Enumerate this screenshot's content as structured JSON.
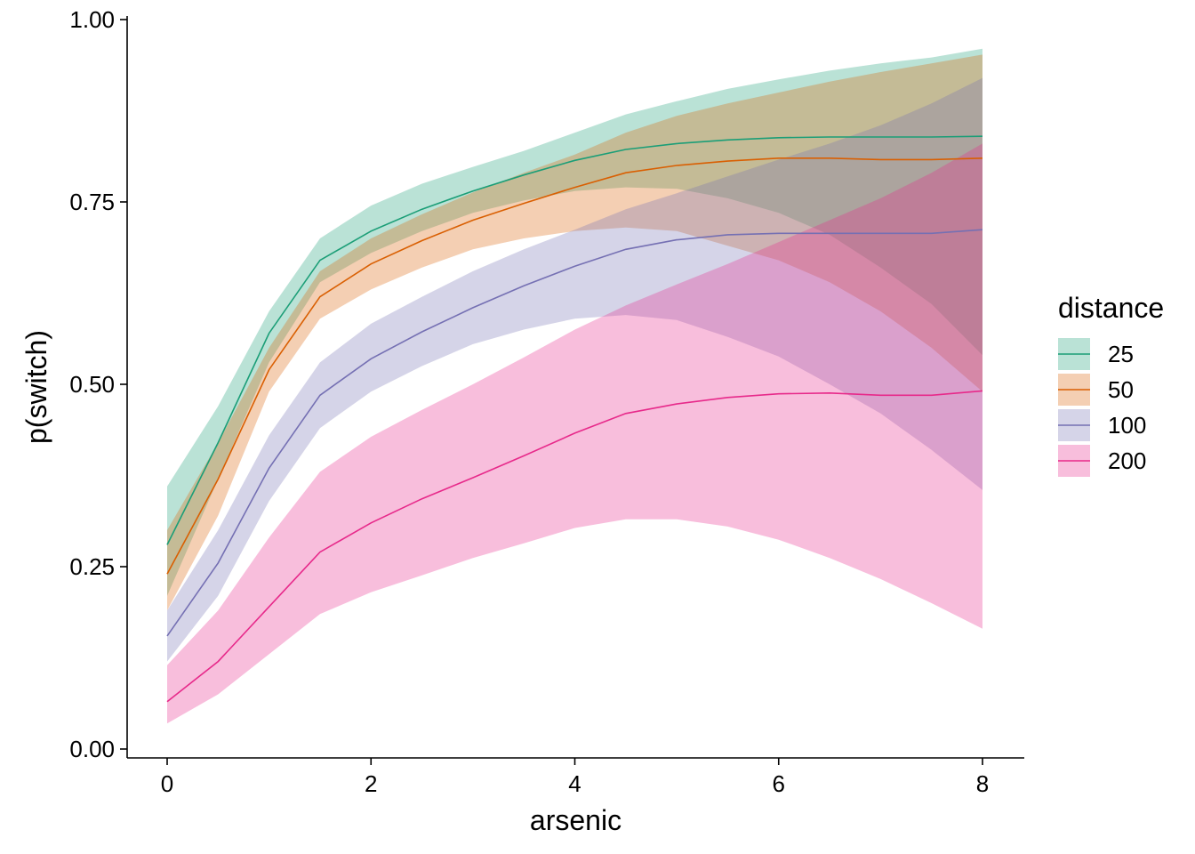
{
  "chart_data": {
    "type": "line",
    "xlabel": "arsenic",
    "ylabel": "p(switch)",
    "xlim": [
      0,
      8
    ],
    "ylim": [
      0,
      1
    ],
    "x_ticks": [
      0,
      2,
      4,
      6,
      8
    ],
    "x_tick_labels": [
      "0",
      "2",
      "4",
      "6",
      "8"
    ],
    "y_ticks": [
      0,
      0.25,
      0.5,
      0.75,
      1
    ],
    "y_tick_labels": [
      "0.00",
      "0.25",
      "0.50",
      "0.75",
      "1.00"
    ],
    "grid": false,
    "legend": {
      "title": "distance",
      "position": "right"
    },
    "x": [
      0,
      0.5,
      1,
      1.5,
      2,
      2.5,
      3,
      3.5,
      4,
      4.5,
      5,
      5.5,
      6,
      6.5,
      7,
      7.5,
      8
    ],
    "series": [
      {
        "name": "25",
        "color": "#1b9e77",
        "fill": "#b3e0d3",
        "values": [
          0.28,
          0.42,
          0.57,
          0.67,
          0.71,
          0.74,
          0.765,
          0.787,
          0.807,
          0.822,
          0.83,
          0.835,
          0.838,
          0.839,
          0.839,
          0.839,
          0.84
        ],
        "lower": [
          0.21,
          0.37,
          0.53,
          0.64,
          0.68,
          0.71,
          0.735,
          0.752,
          0.765,
          0.77,
          0.768,
          0.755,
          0.735,
          0.705,
          0.66,
          0.61,
          0.54
        ],
        "upper": [
          0.36,
          0.47,
          0.6,
          0.7,
          0.745,
          0.775,
          0.798,
          0.82,
          0.845,
          0.87,
          0.888,
          0.905,
          0.918,
          0.93,
          0.94,
          0.948,
          0.96
        ]
      },
      {
        "name": "50",
        "color": "#d95f02",
        "fill": "#f4c8a9",
        "values": [
          0.24,
          0.37,
          0.52,
          0.62,
          0.665,
          0.697,
          0.725,
          0.748,
          0.77,
          0.79,
          0.8,
          0.806,
          0.81,
          0.81,
          0.808,
          0.808,
          0.81
        ],
        "lower": [
          0.19,
          0.32,
          0.49,
          0.59,
          0.63,
          0.66,
          0.685,
          0.7,
          0.71,
          0.715,
          0.71,
          0.69,
          0.67,
          0.64,
          0.6,
          0.55,
          0.49
        ],
        "upper": [
          0.3,
          0.42,
          0.55,
          0.655,
          0.7,
          0.733,
          0.763,
          0.79,
          0.815,
          0.845,
          0.868,
          0.885,
          0.9,
          0.915,
          0.928,
          0.94,
          0.952
        ]
      },
      {
        "name": "100",
        "color": "#7570b3",
        "fill": "#d4d3e8",
        "values": [
          0.155,
          0.255,
          0.385,
          0.485,
          0.535,
          0.572,
          0.605,
          0.635,
          0.662,
          0.685,
          0.698,
          0.705,
          0.707,
          0.707,
          0.707,
          0.707,
          0.712
        ],
        "lower": [
          0.12,
          0.21,
          0.34,
          0.44,
          0.49,
          0.525,
          0.555,
          0.575,
          0.59,
          0.595,
          0.588,
          0.565,
          0.538,
          0.5,
          0.46,
          0.41,
          0.355
        ],
        "upper": [
          0.19,
          0.3,
          0.43,
          0.53,
          0.583,
          0.62,
          0.655,
          0.685,
          0.712,
          0.74,
          0.762,
          0.785,
          0.808,
          0.83,
          0.855,
          0.885,
          0.92
        ]
      },
      {
        "name": "200",
        "color": "#e7298a",
        "fill": "#f6bcda",
        "values": [
          0.065,
          0.12,
          0.195,
          0.27,
          0.31,
          0.343,
          0.372,
          0.402,
          0.433,
          0.46,
          0.473,
          0.482,
          0.487,
          0.488,
          0.485,
          0.485,
          0.491
        ],
        "lower": [
          0.035,
          0.075,
          0.13,
          0.185,
          0.215,
          0.238,
          0.262,
          0.282,
          0.303,
          0.315,
          0.315,
          0.305,
          0.287,
          0.262,
          0.233,
          0.2,
          0.165
        ],
        "upper": [
          0.115,
          0.19,
          0.29,
          0.38,
          0.428,
          0.465,
          0.5,
          0.537,
          0.575,
          0.608,
          0.637,
          0.665,
          0.695,
          0.725,
          0.755,
          0.79,
          0.83
        ]
      }
    ]
  }
}
